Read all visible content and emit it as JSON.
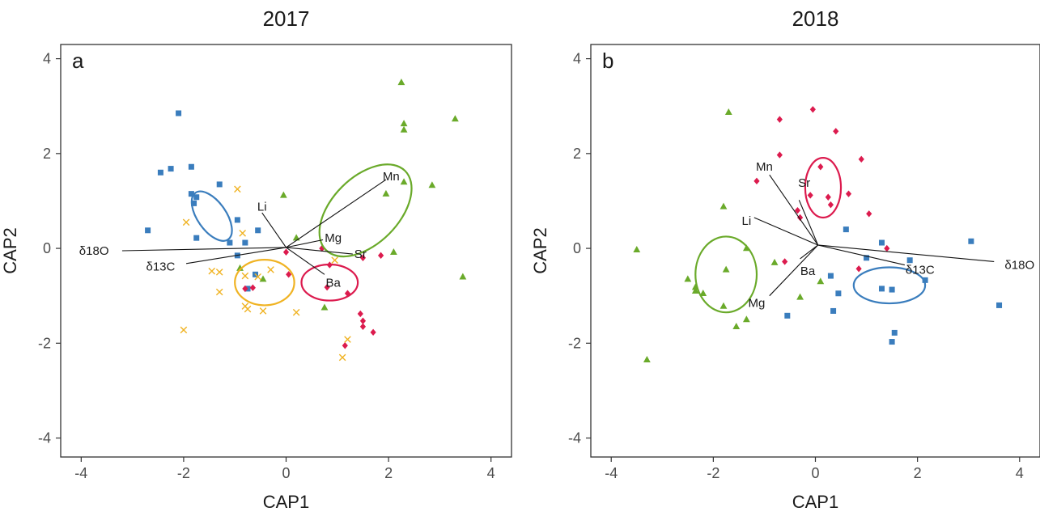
{
  "colors": {
    "blue": "#3a7dbd",
    "green": "#6aaa2a",
    "red": "#dc1b4e",
    "orange": "#f0b323"
  },
  "chart_data": [
    {
      "type": "scatter",
      "title": "2017",
      "panel_label": "a",
      "xlabel": "CAP1",
      "ylabel": "CAP2",
      "xlim": [
        -4.4,
        4.4
      ],
      "ylim": [
        -4.4,
        4.3
      ],
      "xticks": [
        -4,
        -2,
        0,
        2,
        4
      ],
      "yticks": [
        -4,
        -2,
        0,
        2,
        4
      ],
      "grid": false,
      "groups": [
        {
          "color": "#3a7dbd",
          "marker": "square",
          "points": [
            [
              -2.1,
              2.85
            ],
            [
              -2.45,
              1.6
            ],
            [
              -2.25,
              1.68
            ],
            [
              -1.85,
              1.72
            ],
            [
              -1.3,
              1.35
            ],
            [
              -1.85,
              1.15
            ],
            [
              -1.8,
              0.95
            ],
            [
              -1.75,
              1.08
            ],
            [
              -2.7,
              0.38
            ],
            [
              -1.75,
              0.22
            ],
            [
              -1.1,
              0.12
            ],
            [
              -0.95,
              0.6
            ],
            [
              -0.8,
              0.12
            ],
            [
              -0.55,
              0.38
            ],
            [
              -0.95,
              -0.15
            ],
            [
              -0.75,
              -0.85
            ],
            [
              -0.6,
              -0.55
            ]
          ]
        },
        {
          "color": "#6aaa2a",
          "marker": "triangle",
          "points": [
            [
              2.25,
              3.5
            ],
            [
              2.3,
              2.63
            ],
            [
              2.3,
              2.5
            ],
            [
              3.3,
              2.73
            ],
            [
              2.85,
              1.33
            ],
            [
              2.3,
              1.4
            ],
            [
              1.95,
              1.15
            ],
            [
              -0.05,
              1.12
            ],
            [
              0.2,
              0.22
            ],
            [
              2.1,
              -0.08
            ],
            [
              3.45,
              -0.6
            ],
            [
              -0.45,
              -0.65
            ],
            [
              -0.9,
              -0.42
            ],
            [
              0.75,
              -1.25
            ]
          ]
        },
        {
          "color": "#dc1b4e",
          "marker": "diamond",
          "points": [
            [
              0.0,
              -0.08
            ],
            [
              0.7,
              0.0
            ],
            [
              1.85,
              -0.15
            ],
            [
              1.5,
              -0.2
            ],
            [
              0.05,
              -0.55
            ],
            [
              0.85,
              -0.35
            ],
            [
              0.8,
              -0.82
            ],
            [
              1.2,
              -0.95
            ],
            [
              -0.65,
              -0.83
            ],
            [
              -0.8,
              -0.85
            ],
            [
              1.45,
              -1.38
            ],
            [
              1.5,
              -1.53
            ],
            [
              1.5,
              -1.65
            ],
            [
              1.7,
              -1.77
            ],
            [
              1.15,
              -2.05
            ]
          ]
        },
        {
          "color": "#f0b323",
          "marker": "cross",
          "points": [
            [
              -0.95,
              1.25
            ],
            [
              -1.95,
              0.55
            ],
            [
              -0.85,
              0.32
            ],
            [
              -1.45,
              -0.48
            ],
            [
              -1.3,
              -0.5
            ],
            [
              -0.8,
              -0.58
            ],
            [
              -0.55,
              -0.6
            ],
            [
              -1.3,
              -0.92
            ],
            [
              -0.3,
              -0.45
            ],
            [
              -0.8,
              -1.22
            ],
            [
              -0.75,
              -1.28
            ],
            [
              -0.45,
              -1.32
            ],
            [
              0.2,
              -1.35
            ],
            [
              0.95,
              -0.25
            ],
            [
              1.2,
              -1.92
            ],
            [
              -2.0,
              -1.72
            ],
            [
              1.1,
              -2.3
            ]
          ]
        }
      ],
      "ellipses": [
        {
          "color": "#3a7dbd",
          "cx": -1.45,
          "cy": 0.68,
          "rx": 0.28,
          "ry": 0.6,
          "angle": -35
        },
        {
          "color": "#6aaa2a",
          "cx": 1.55,
          "cy": 0.8,
          "rx": 0.65,
          "ry": 1.18,
          "angle": 45
        },
        {
          "color": "#dc1b4e",
          "cx": 0.85,
          "cy": -0.72,
          "rx": 0.55,
          "ry": 0.38,
          "angle": 0
        },
        {
          "color": "#f0b323",
          "cx": -0.42,
          "cy": -0.72,
          "rx": 0.58,
          "ry": 0.48,
          "angle": 0
        }
      ],
      "origin": [
        0.0,
        0.02
      ],
      "vectors": [
        {
          "label": "Mn",
          "x": 1.95,
          "y": 1.45,
          "tx": 2.05,
          "ty": 1.52
        },
        {
          "label": "Li",
          "x": -0.47,
          "y": 0.75,
          "tx": -0.47,
          "ty": 0.88
        },
        {
          "label": "Mg",
          "x": 0.72,
          "y": 0.18,
          "tx": 0.92,
          "ty": 0.22
        },
        {
          "label": "δ18O",
          "x": -3.2,
          "y": -0.05,
          "tx": -3.75,
          "ty": -0.05
        },
        {
          "label": "Sr",
          "x": 1.3,
          "y": -0.12,
          "tx": 1.45,
          "ty": -0.12
        },
        {
          "label": "δ13C",
          "x": -1.95,
          "y": -0.32,
          "tx": -2.45,
          "ty": -0.38
        },
        {
          "label": "Ba",
          "x": 0.75,
          "y": -0.55,
          "tx": 0.92,
          "ty": -0.72
        }
      ]
    },
    {
      "type": "scatter",
      "title": "2018",
      "panel_label": "b",
      "xlabel": "CAP1",
      "ylabel": "CAP2",
      "xlim": [
        -4.4,
        4.4
      ],
      "ylim": [
        -4.4,
        4.3
      ],
      "xticks": [
        -4,
        -2,
        0,
        2,
        4
      ],
      "yticks": [
        -4,
        -2,
        0,
        2,
        4
      ],
      "grid": false,
      "groups": [
        {
          "color": "#3a7dbd",
          "marker": "square",
          "points": [
            [
              0.6,
              0.4
            ],
            [
              1.3,
              0.12
            ],
            [
              3.05,
              0.15
            ],
            [
              1.0,
              -0.2
            ],
            [
              1.85,
              -0.25
            ],
            [
              0.3,
              -0.58
            ],
            [
              0.45,
              -0.95
            ],
            [
              1.3,
              -0.85
            ],
            [
              1.5,
              -0.87
            ],
            [
              2.15,
              -0.67
            ],
            [
              -0.55,
              -1.42
            ],
            [
              0.35,
              -1.32
            ],
            [
              1.5,
              -1.97
            ],
            [
              1.55,
              -1.78
            ],
            [
              3.6,
              -1.2
            ]
          ]
        },
        {
          "color": "#6aaa2a",
          "marker": "triangle",
          "points": [
            [
              -1.7,
              2.87
            ],
            [
              -1.8,
              0.88
            ],
            [
              -3.5,
              -0.03
            ],
            [
              -1.35,
              0.0
            ],
            [
              -0.8,
              -0.3
            ],
            [
              -1.75,
              -0.45
            ],
            [
              -2.5,
              -0.65
            ],
            [
              -2.35,
              -0.82
            ],
            [
              -2.35,
              -0.9
            ],
            [
              -2.2,
              -0.95
            ],
            [
              -1.8,
              -1.22
            ],
            [
              -0.3,
              -1.03
            ],
            [
              -1.35,
              -1.5
            ],
            [
              -1.55,
              -1.65
            ],
            [
              -3.3,
              -2.35
            ],
            [
              0.1,
              -0.7
            ]
          ]
        },
        {
          "color": "#dc1b4e",
          "marker": "diamond",
          "points": [
            [
              -0.05,
              2.93
            ],
            [
              -0.7,
              2.72
            ],
            [
              0.4,
              2.47
            ],
            [
              -0.7,
              1.97
            ],
            [
              0.9,
              1.88
            ],
            [
              0.1,
              1.72
            ],
            [
              -1.15,
              1.42
            ],
            [
              -0.1,
              1.12
            ],
            [
              0.25,
              1.08
            ],
            [
              0.65,
              1.15
            ],
            [
              0.3,
              0.92
            ],
            [
              -0.35,
              0.8
            ],
            [
              1.05,
              0.73
            ],
            [
              -0.3,
              0.65
            ],
            [
              1.4,
              0.0
            ],
            [
              -0.6,
              -0.28
            ],
            [
              0.85,
              -0.43
            ]
          ]
        }
      ],
      "ellipses": [
        {
          "color": "#6aaa2a",
          "cx": -1.75,
          "cy": -0.55,
          "rx": 0.6,
          "ry": 0.8,
          "angle": 0
        },
        {
          "color": "#dc1b4e",
          "cx": 0.15,
          "cy": 1.28,
          "rx": 0.35,
          "ry": 0.63,
          "angle": 0
        },
        {
          "color": "#3a7dbd",
          "cx": 1.45,
          "cy": -0.78,
          "rx": 0.7,
          "ry": 0.38,
          "angle": 0
        }
      ],
      "origin": [
        0.05,
        0.07
      ],
      "vectors": [
        {
          "label": "Mn",
          "x": -0.9,
          "y": 1.55,
          "tx": -1.0,
          "ty": 1.72
        },
        {
          "label": "Sr",
          "x": -0.32,
          "y": 1.02,
          "tx": -0.22,
          "ty": 1.38
        },
        {
          "label": "Li",
          "x": -1.2,
          "y": 0.65,
          "tx": -1.35,
          "ty": 0.58
        },
        {
          "label": "Ba",
          "x": -0.3,
          "y": -0.22,
          "tx": -0.15,
          "ty": -0.48
        },
        {
          "label": "Mg",
          "x": -0.9,
          "y": -1.0,
          "tx": -1.15,
          "ty": -1.15
        },
        {
          "label": "δ13C",
          "x": 1.75,
          "y": -0.35,
          "tx": 2.05,
          "ty": -0.45
        },
        {
          "label": "δ18O",
          "x": 3.5,
          "y": -0.28,
          "tx": 4.0,
          "ty": -0.35
        }
      ]
    }
  ]
}
